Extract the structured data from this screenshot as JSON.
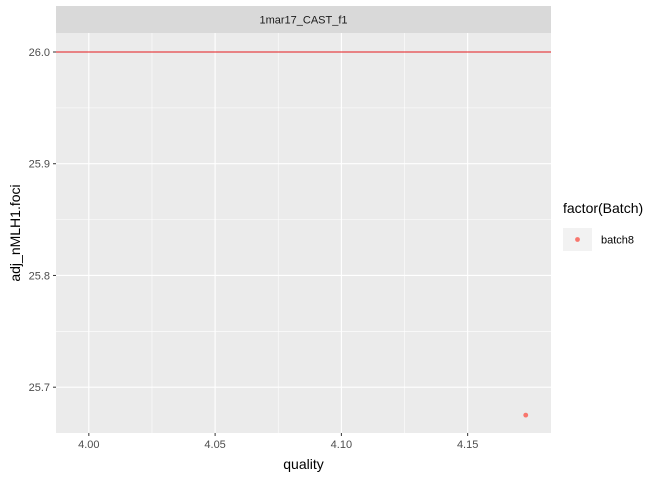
{
  "chart_data": {
    "type": "scatter",
    "facet_label": "1mar17_CAST_f1",
    "xlabel": "quality",
    "ylabel": "adj_nMLH1.foci",
    "xlim": [
      3.987,
      4.183
    ],
    "ylim": [
      25.659,
      26.017
    ],
    "x_ticks": [
      4.0,
      4.05,
      4.1,
      4.15
    ],
    "x_tick_labels": [
      "4.00",
      "4.05",
      "4.10",
      "4.15"
    ],
    "y_ticks": [
      25.7,
      25.8,
      25.9,
      26.0
    ],
    "y_tick_labels": [
      "25.7",
      "25.8",
      "25.9",
      "26.0"
    ],
    "hline": {
      "y": 26.0,
      "color": "#e41a1c"
    },
    "legend": {
      "title": "factor(Batch)",
      "position": "right",
      "entries": [
        {
          "label": "batch8",
          "color": "#f8766d"
        }
      ]
    },
    "series": [
      {
        "name": "batch8",
        "color": "#f8766d",
        "points": [
          {
            "x": 4.173,
            "y": 25.675
          }
        ]
      }
    ],
    "grid": true,
    "panel_background": "#ebebeb",
    "strip_background": "#d9d9d9"
  }
}
